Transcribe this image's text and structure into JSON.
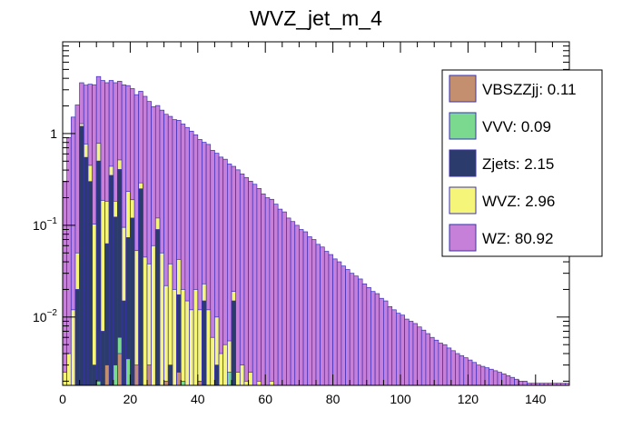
{
  "chart_data": {
    "type": "bar",
    "subtype": "stacked-histogram",
    "title": "WVZ_jet_m_4",
    "xlabel": "",
    "ylabel": "",
    "xlim": [
      0,
      150
    ],
    "ylim": [
      0.0018,
      10
    ],
    "yscale": "log",
    "bin_width": 1.25,
    "x_ticks": [
      0,
      20,
      40,
      60,
      80,
      100,
      120,
      140
    ],
    "x_tick_labels": [
      "0",
      "20",
      "40",
      "60",
      "80",
      "100",
      "120",
      "140"
    ],
    "y_tick_labels": [
      {
        "value": 1,
        "base": "1",
        "exp": ""
      },
      {
        "value": 0.1,
        "base": "10",
        "exp": "−1"
      },
      {
        "value": 0.01,
        "base": "10",
        "exp": "−2"
      }
    ],
    "legend_position": "top-right",
    "colors": {
      "VBSZZjj": "#c48f6f",
      "VVV": "#7bd88f",
      "Zjets": "#2b3b6b",
      "WVZ": "#f5f57a",
      "WZ": "#c680d9",
      "outline": "#3a2fb8"
    },
    "legend": [
      {
        "name": "VBSZZjj",
        "label": "VBSZZjj: 0.11"
      },
      {
        "name": "VVV",
        "label": "VVV: 0.09"
      },
      {
        "name": "Zjets",
        "label": "Zjets: 2.15"
      },
      {
        "name": "WVZ",
        "label": "WVZ: 2.96"
      },
      {
        "name": "WZ",
        "label": "WZ: 80.92"
      }
    ],
    "series": [
      {
        "name": "VBSZZjj",
        "values": [
          0,
          0,
          0,
          0,
          0,
          0,
          0,
          0,
          0,
          0,
          0.003,
          0,
          0,
          0.004,
          0,
          0,
          0,
          0.003,
          0,
          0,
          0.003,
          0,
          0,
          0,
          0.002,
          0,
          0,
          0.0025,
          0,
          0,
          0,
          0,
          0.002,
          0,
          0,
          0,
          0,
          0,
          0,
          0,
          0,
          0,
          0,
          0,
          0,
          0,
          0,
          0,
          0,
          0,
          0,
          0,
          0,
          0,
          0,
          0,
          0,
          0,
          0,
          0,
          0,
          0,
          0,
          0,
          0,
          0,
          0,
          0,
          0,
          0,
          0,
          0,
          0,
          0,
          0,
          0,
          0,
          0,
          0,
          0,
          0,
          0,
          0,
          0,
          0,
          0,
          0,
          0,
          0,
          0,
          0,
          0,
          0,
          0,
          0,
          0,
          0,
          0,
          0,
          0,
          0,
          0,
          0,
          0,
          0,
          0,
          0,
          0,
          0,
          0,
          0,
          0,
          0,
          0,
          0,
          0,
          0,
          0,
          0,
          0
        ]
      },
      {
        "name": "VVV",
        "values": [
          0,
          0,
          0,
          0,
          0,
          0,
          0,
          0,
          0.002,
          0,
          0,
          0,
          0.003,
          0.002,
          0,
          0.0035,
          0,
          0,
          0,
          0,
          0,
          0,
          0,
          0,
          0,
          0,
          0,
          0,
          0.002,
          0,
          0,
          0,
          0,
          0,
          0,
          0,
          0,
          0,
          0,
          0.0025,
          0,
          0,
          0,
          0,
          0,
          0,
          0,
          0,
          0,
          0,
          0,
          0,
          0,
          0,
          0,
          0,
          0,
          0,
          0,
          0,
          0,
          0,
          0,
          0,
          0,
          0,
          0,
          0,
          0,
          0,
          0,
          0,
          0,
          0,
          0,
          0,
          0,
          0,
          0,
          0,
          0,
          0,
          0,
          0,
          0,
          0,
          0,
          0,
          0,
          0,
          0,
          0,
          0,
          0,
          0,
          0,
          0,
          0,
          0,
          0,
          0,
          0,
          0,
          0,
          0,
          0,
          0,
          0,
          0,
          0,
          0,
          0,
          0,
          0,
          0,
          0,
          0,
          0,
          0,
          0
        ]
      },
      {
        "name": "Zjets",
        "values": [
          0,
          0,
          0,
          0.02,
          1.2,
          0.55,
          0.3,
          0.003,
          0.5,
          0.007,
          0.06,
          0.35,
          0.12,
          0.4,
          0.015,
          0.07,
          0.12,
          0,
          0.25,
          0,
          0,
          0,
          0.09,
          0,
          0,
          0.003,
          0,
          0.015,
          0,
          0,
          0,
          0,
          0,
          0.015,
          0,
          0,
          0.003,
          0,
          0,
          0,
          0.015,
          0,
          0,
          0,
          0,
          0,
          0,
          0,
          0,
          0,
          0,
          0,
          0,
          0,
          0,
          0,
          0,
          0,
          0,
          0,
          0,
          0,
          0,
          0,
          0,
          0,
          0,
          0,
          0,
          0,
          0,
          0,
          0,
          0,
          0,
          0,
          0,
          0,
          0,
          0,
          0,
          0,
          0,
          0,
          0,
          0,
          0,
          0,
          0,
          0,
          0,
          0,
          0,
          0,
          0,
          0,
          0,
          0,
          0,
          0,
          0,
          0,
          0,
          0,
          0,
          0,
          0,
          0,
          0,
          0,
          0,
          0,
          0,
          0,
          0,
          0,
          0,
          0,
          0,
          0,
          0,
          0
        ]
      },
      {
        "name": "WVZ",
        "values": [
          0.0025,
          0.004,
          0.012,
          0.03,
          0.08,
          0.22,
          0.15,
          0.1,
          0.28,
          0.18,
          0.12,
          0.09,
          0.06,
          0.11,
          0.08,
          0.16,
          0.07,
          0.05,
          0.04,
          0.045,
          0.035,
          0.06,
          0.03,
          0.05,
          0.02,
          0.035,
          0.02,
          0.025,
          0.018,
          0.015,
          0.012,
          0.02,
          0.01,
          0.008,
          0.012,
          0.006,
          0.007,
          0.004,
          0.005,
          0.003,
          0.004,
          0.0025,
          0.003,
          0.002,
          0.0025,
          0,
          0.002,
          0,
          0,
          0.002,
          0,
          0,
          0,
          0,
          0,
          0,
          0,
          0,
          0,
          0,
          0,
          0,
          0,
          0,
          0,
          0,
          0,
          0,
          0,
          0,
          0,
          0,
          0,
          0,
          0,
          0,
          0,
          0,
          0,
          0,
          0,
          0,
          0,
          0,
          0,
          0,
          0,
          0,
          0,
          0,
          0,
          0,
          0,
          0,
          0,
          0,
          0,
          0,
          0,
          0,
          0,
          0,
          0,
          0,
          0,
          0,
          0,
          0,
          0,
          0,
          0,
          0,
          0,
          0,
          0,
          0,
          0,
          0,
          0,
          0,
          0,
          0
        ]
      },
      {
        "name": "WZ",
        "values": [
          0.3,
          0.9,
          1.5,
          2.0,
          2.3,
          2.6,
          3.0,
          3.3,
          3.4,
          3.6,
          3.4,
          3.35,
          3.4,
          3.2,
          3.3,
          3.1,
          2.9,
          2.6,
          2.6,
          2.5,
          2.2,
          1.9,
          1.9,
          1.75,
          1.6,
          1.5,
          1.4,
          1.35,
          1.25,
          1.15,
          1.05,
          0.95,
          0.85,
          0.78,
          0.75,
          0.65,
          0.6,
          0.55,
          0.52,
          0.46,
          0.42,
          0.4,
          0.36,
          0.33,
          0.3,
          0.28,
          0.25,
          0.22,
          0.2,
          0.19,
          0.17,
          0.15,
          0.14,
          0.12,
          0.11,
          0.1,
          0.09,
          0.085,
          0.075,
          0.07,
          0.062,
          0.058,
          0.052,
          0.048,
          0.043,
          0.04,
          0.036,
          0.033,
          0.03,
          0.028,
          0.026,
          0.023,
          0.021,
          0.019,
          0.018,
          0.016,
          0.015,
          0.013,
          0.012,
          0.011,
          0.0105,
          0.0095,
          0.009,
          0.0085,
          0.0078,
          0.0072,
          0.0066,
          0.006,
          0.0056,
          0.0052,
          0.005,
          0.0046,
          0.0043,
          0.004,
          0.0038,
          0.0036,
          0.0034,
          0.0032,
          0.003,
          0.0029,
          0.0028,
          0.0027,
          0.0026,
          0.0025,
          0.0024,
          0.0023,
          0.0022,
          0.0021,
          0.002,
          0.002,
          0.0019,
          0.0019,
          0.0019,
          0.0019,
          0.0019,
          0.0019,
          0.0019,
          0.0019,
          0.0019,
          0.0019
        ]
      }
    ]
  }
}
